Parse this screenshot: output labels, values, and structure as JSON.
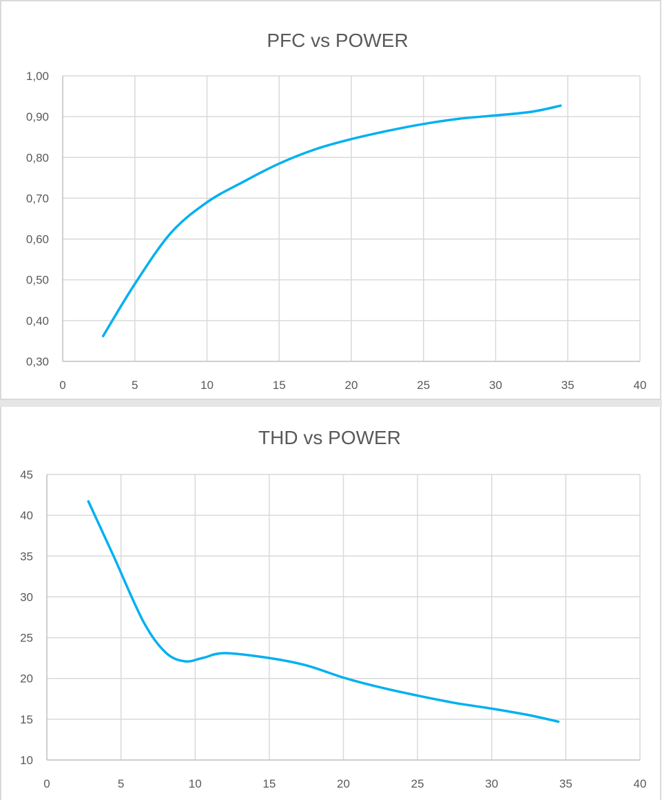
{
  "colors": {
    "series": "#00b0f0"
  },
  "chart_data": [
    {
      "type": "line",
      "title": "PFC vs POWER",
      "xlabel": "",
      "ylabel": "",
      "xlim": [
        0,
        40
      ],
      "ylim": [
        0.3,
        1.0
      ],
      "x_ticks": [
        0,
        5,
        10,
        15,
        20,
        25,
        30,
        35,
        40
      ],
      "x_tick_labels": [
        "0",
        "5",
        "10",
        "15",
        "20",
        "25",
        "30",
        "35",
        "40"
      ],
      "y_ticks": [
        0.3,
        0.4,
        0.5,
        0.6,
        0.7,
        0.8,
        0.9,
        1.0
      ],
      "y_tick_labels": [
        "0,30",
        "0,40",
        "0,50",
        "0,60",
        "0,70",
        "0,80",
        "0,90",
        "1,00"
      ],
      "grid": true,
      "smooth": true,
      "series": [
        {
          "x": [
            2.8,
            5,
            7.5,
            10,
            12.5,
            15,
            17.5,
            20,
            22.5,
            25,
            27.5,
            30,
            32.5,
            34.5
          ],
          "y": [
            0.362,
            0.49,
            0.615,
            0.69,
            0.74,
            0.785,
            0.82,
            0.845,
            0.865,
            0.882,
            0.895,
            0.903,
            0.912,
            0.927
          ]
        }
      ]
    },
    {
      "type": "line",
      "title": "THD vs POWER",
      "xlabel": "",
      "ylabel": "",
      "xlim": [
        0,
        40
      ],
      "ylim": [
        10,
        45
      ],
      "x_ticks": [
        0,
        5,
        10,
        15,
        20,
        25,
        30,
        35,
        40
      ],
      "x_tick_labels": [
        "0",
        "5",
        "10",
        "15",
        "20",
        "25",
        "30",
        "35",
        "40"
      ],
      "y_ticks": [
        10,
        15,
        20,
        25,
        30,
        35,
        40,
        45
      ],
      "y_tick_labels": [
        "10",
        "15",
        "20",
        "25",
        "30",
        "35",
        "40",
        "45"
      ],
      "grid": true,
      "smooth": true,
      "series": [
        {
          "x": [
            2.8,
            4.5,
            6.5,
            8.0,
            9.3,
            10.5,
            12.0,
            15.0,
            17.5,
            20.0,
            22.5,
            25.0,
            27.5,
            30.0,
            32.5,
            34.5
          ],
          "y": [
            41.7,
            35.0,
            27.0,
            23.2,
            22.1,
            22.5,
            23.1,
            22.5,
            21.6,
            20.1,
            18.9,
            17.9,
            17.0,
            16.3,
            15.5,
            14.7
          ]
        }
      ]
    }
  ]
}
